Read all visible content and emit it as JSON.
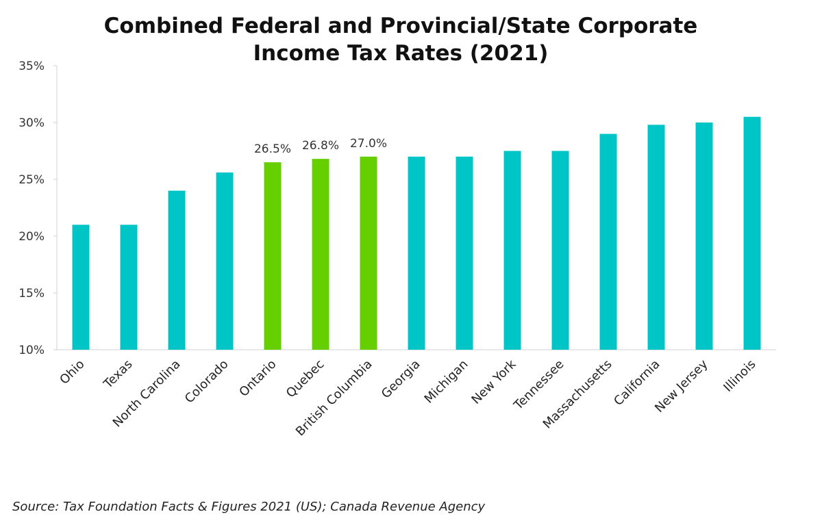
{
  "chart_data": {
    "type": "bar",
    "title": "Combined Federal and Provincial/State Corporate Income Tax Rates (2021)",
    "title_lines": [
      "Combined Federal and Provincial/State Corporate",
      "Income Tax Rates (2021)"
    ],
    "categories": [
      "Ohio",
      "Texas",
      "North Carolina",
      "Colorado",
      "Ontario",
      "Quebec",
      "British Columbia",
      "Georgia",
      "Michigan",
      "New York",
      "Tennessee",
      "Massachusetts",
      "California",
      "New Jersey",
      "Illinois"
    ],
    "values": [
      21.0,
      21.0,
      24.0,
      25.6,
      26.5,
      26.8,
      27.0,
      27.0,
      27.0,
      27.5,
      27.5,
      29.0,
      29.8,
      30.0,
      30.5
    ],
    "highlighted": [
      "Ontario",
      "Quebec",
      "British Columbia"
    ],
    "data_labels": {
      "Ontario": "26.5%",
      "Quebec": "26.8%",
      "British Columbia": "27.0%"
    },
    "ylim": [
      10,
      35
    ],
    "yticks": [
      "10%",
      "15%",
      "20%",
      "25%",
      "30%",
      "35%"
    ],
    "ytick_values": [
      10,
      15,
      20,
      25,
      30,
      35
    ],
    "xlabel": "",
    "ylabel": "",
    "grid": false,
    "colors": {
      "default": "#00C5C7",
      "highlight": "#66CF00",
      "axis": "#d0d0d0"
    }
  },
  "source": "Source: Tax Foundation Facts & Figures 2021 (US); Canada Revenue Agency"
}
